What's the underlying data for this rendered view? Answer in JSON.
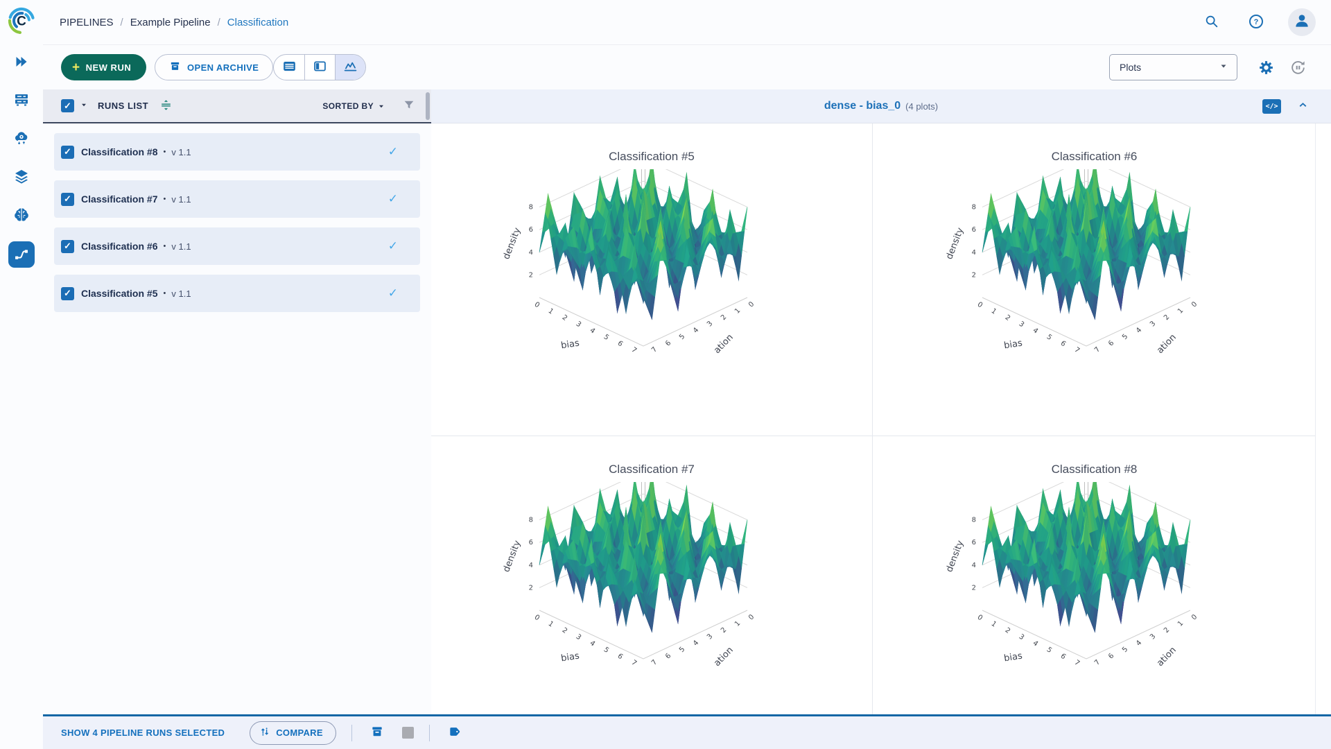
{
  "topbar": {
    "breadcrumb": [
      {
        "label": "PIPELINES"
      },
      {
        "label": "Example Pipeline"
      },
      {
        "label": "Classification"
      }
    ],
    "separator": "/"
  },
  "toolbar": {
    "new_run_label": "NEW RUN",
    "open_archive_label": "OPEN ARCHIVE",
    "view_dropdown_value": "Plots"
  },
  "runs_panel": {
    "title": "RUNS LIST",
    "sorted_by_label": "SORTED BY",
    "bullet": "•",
    "runs": [
      {
        "name": "Classification #8",
        "version": "v 1.1",
        "selected": true
      },
      {
        "name": "Classification #7",
        "version": "v 1.1",
        "selected": true
      },
      {
        "name": "Classification #6",
        "version": "v 1.1",
        "selected": true
      },
      {
        "name": "Classification #5",
        "version": "v 1.1",
        "selected": true
      }
    ]
  },
  "plots_header": {
    "title": "dense - bias_0",
    "count_label": "(4 plots)"
  },
  "footer": {
    "selection_label": "SHOW 4 PIPELINE RUNS SELECTED",
    "compare_label": "COMPARE"
  },
  "glyphs": {
    "plus": "+",
    "check": "✓",
    "code": "</>"
  },
  "colors": {
    "accent_blue": "#1b6fb5",
    "link_blue": "#2178bf",
    "green_button": "#0b695a",
    "row_background": "#e7edf7",
    "footer_border": "#1366a5",
    "row_check_blue": "#45a7e8",
    "navy_text": "#1e2f50"
  },
  "chart_data": {
    "type": "surface",
    "titles": [
      "Classification #5",
      "Classification #6",
      "Classification #7",
      "Classification #8"
    ],
    "xlabel": "bias",
    "ylabel": "iteration",
    "ylabel_display": "ation",
    "zlabel": "density",
    "x_ticks": [
      0,
      1,
      2,
      3,
      4,
      5,
      6,
      7
    ],
    "y_ticks": [
      0,
      1,
      2,
      3,
      4,
      5,
      6,
      7
    ],
    "z_ticks": [
      2,
      4,
      6,
      8
    ],
    "x_range": [
      0,
      7.5
    ],
    "y_range": [
      0,
      7.5
    ],
    "z_range": [
      0,
      9.2
    ],
    "colorscale": "viridis",
    "colorscale_stops": [
      [
        0,
        "#440154"
      ],
      [
        0.13,
        "#482878"
      ],
      [
        0.25,
        "#3e4a89"
      ],
      [
        0.38,
        "#31688e"
      ],
      [
        0.5,
        "#26828e"
      ],
      [
        0.62,
        "#1f9e89"
      ],
      [
        0.75,
        "#35b779"
      ],
      [
        0.85,
        "#6ece58"
      ],
      [
        0.93,
        "#b5de2b"
      ],
      [
        1,
        "#fde725"
      ]
    ],
    "z": [
      [
        4.2,
        6.8,
        2.1,
        7.4,
        5.0,
        8.2,
        3.1,
        6.0,
        7.8,
        2.5,
        5.5,
        8.8,
        4.0
      ],
      [
        7.9,
        3.2,
        8.6,
        1.8,
        6.9,
        2.9,
        7.5,
        4.4,
        1.9,
        6.6,
        3.8,
        5.2,
        7.1
      ],
      [
        2.4,
        9.1,
        4.7,
        6.2,
        0.9,
        7.7,
        5.3,
        8.4,
        3.6,
        7.2,
        1.5,
        6.9,
        2.8
      ],
      [
        6.5,
        1.7,
        7.8,
        3.4,
        8.8,
        4.1,
        1.2,
        6.8,
        5.0,
        2.2,
        8.1,
        3.9,
        6.3
      ],
      [
        3.8,
        7.3,
        2.6,
        9.0,
        5.6,
        1.4,
        8.3,
        3.0,
        7.6,
        4.8,
        6.1,
        1.8,
        7.7
      ],
      [
        8.5,
        4.6,
        6.7,
        2.0,
        7.1,
        8.9,
        2.7,
        5.9,
        1.1,
        8.0,
        3.3,
        7.4,
        4.5
      ],
      [
        1.6,
        7.0,
        3.5,
        8.2,
        4.3,
        0.8,
        7.2,
        4.0,
        8.7,
        2.6,
        6.4,
        2.1,
        8.4
      ],
      [
        5.9,
        2.8,
        8.1,
        5.1,
        1.9,
        6.6,
        3.7,
        9.2,
        2.3,
        7.0,
        4.2,
        6.8,
        3.1
      ],
      [
        7.4,
        4.9,
        1.3,
        7.9,
        6.0,
        3.2,
        8.6,
        1.6,
        6.2,
        3.9,
        8.3,
        1.2,
        7.0
      ],
      [
        2.9,
        8.8,
        5.4,
        2.4,
        9.1,
        4.7,
        2.0,
        7.7,
        5.2,
        1.7,
        6.7,
        4.4,
        5.8
      ],
      [
        6.1,
        3.0,
        7.6,
        4.2,
        1.5,
        8.5,
        5.7,
        3.4,
        8.9,
        6.3,
        2.4,
        7.9,
        2.2
      ],
      [
        4.4,
        7.7,
        2.2,
        6.4,
        7.3,
        2.5,
        6.9,
        1.0,
        4.6,
        8.6,
        5.1,
        3.6,
        6.6
      ],
      [
        8.0,
        1.9,
        5.8,
        3.3,
        8.4,
        5.5,
        3.9,
        7.1,
        2.8,
        5.3,
        7.5,
        2.0,
        4.9
      ]
    ]
  }
}
